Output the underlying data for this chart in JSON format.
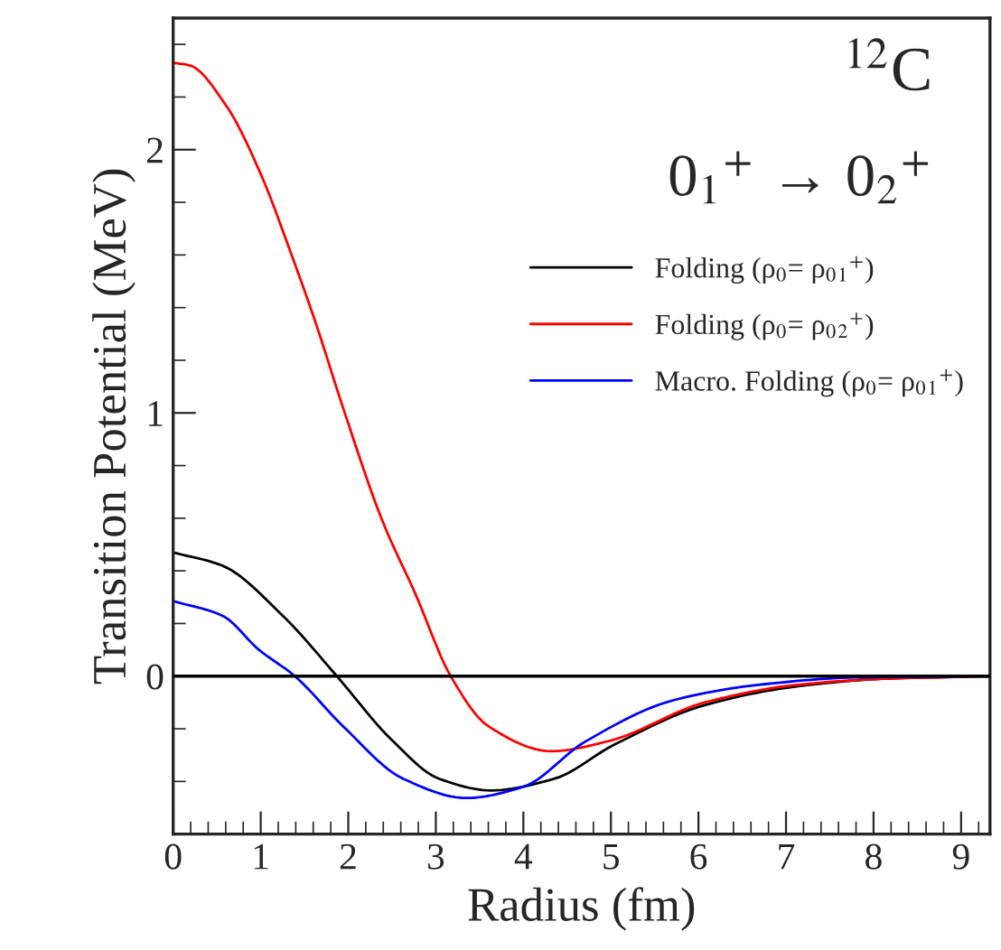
{
  "chart_data": {
    "type": "line",
    "xlabel": "Radius (fm)",
    "ylabel": "Transition Potential (MeV)",
    "annotations": [
      "$^{12}$C",
      "0$_{1}$$^{+}$ → 0$_{2}$$^{+}$"
    ],
    "xlim": [
      0,
      9.33
    ],
    "ylim": [
      -0.6,
      2.5
    ],
    "xticks": [
      0,
      1,
      2,
      3,
      4,
      5,
      6,
      7,
      8,
      9
    ],
    "yticks": [
      0,
      1,
      2
    ],
    "grid": false,
    "legend": "top right",
    "marker": "none",
    "line_style": "solid",
    "ref_lines": [
      {
        "axis": "y",
        "value": 0,
        "color": "#000000"
      }
    ],
    "series": [
      {
        "name": "Folding (ρ$_{0}$= ρ$_{0}$$_{1}$$^{+}$)",
        "color": "#000000",
        "x": [
          0,
          0.56,
          1.25,
          1.87,
          2.49,
          3.04,
          3.63,
          4.35,
          5.04,
          6.07,
          7.1,
          8.1,
          9.33
        ],
        "values": [
          0.47,
          0.42,
          0.23,
          0,
          -0.24,
          -0.39,
          -0.434,
          -0.39,
          -0.26,
          -0.11,
          -0.04,
          -0.01,
          0
        ]
      },
      {
        "name": "Folding (ρ$_{0}$= ρ$_{0}$$_{2}$$^{+}$)",
        "color": "#ff0000",
        "x": [
          0,
          0.19,
          0.6,
          1.01,
          1.32,
          1.63,
          1.94,
          2.39,
          2.77,
          3.17,
          3.6,
          4.32,
          4.97,
          6.07,
          7.1,
          8.1,
          9.33
        ],
        "values": [
          2.33,
          2.32,
          2.17,
          1.9,
          1.63,
          1.34,
          1.02,
          0.59,
          0.31,
          0,
          -0.19,
          -0.285,
          -0.247,
          -0.1,
          -0.034,
          -0.01,
          0
        ]
      },
      {
        "name": "Macro. Folding (ρ$_{0}$= ρ$_{0}$$_{1}$$^{+}$)",
        "color": "#0000ff",
        "x": [
          0,
          0.56,
          0.98,
          1.39,
          1.94,
          2.63,
          3.35,
          4.0,
          4.7,
          5.73,
          6.77,
          7.8,
          9.33
        ],
        "values": [
          0.285,
          0.23,
          0.1,
          0,
          -0.19,
          -0.39,
          -0.463,
          -0.42,
          -0.25,
          -0.09,
          -0.03,
          -0.005,
          0
        ]
      }
    ]
  }
}
